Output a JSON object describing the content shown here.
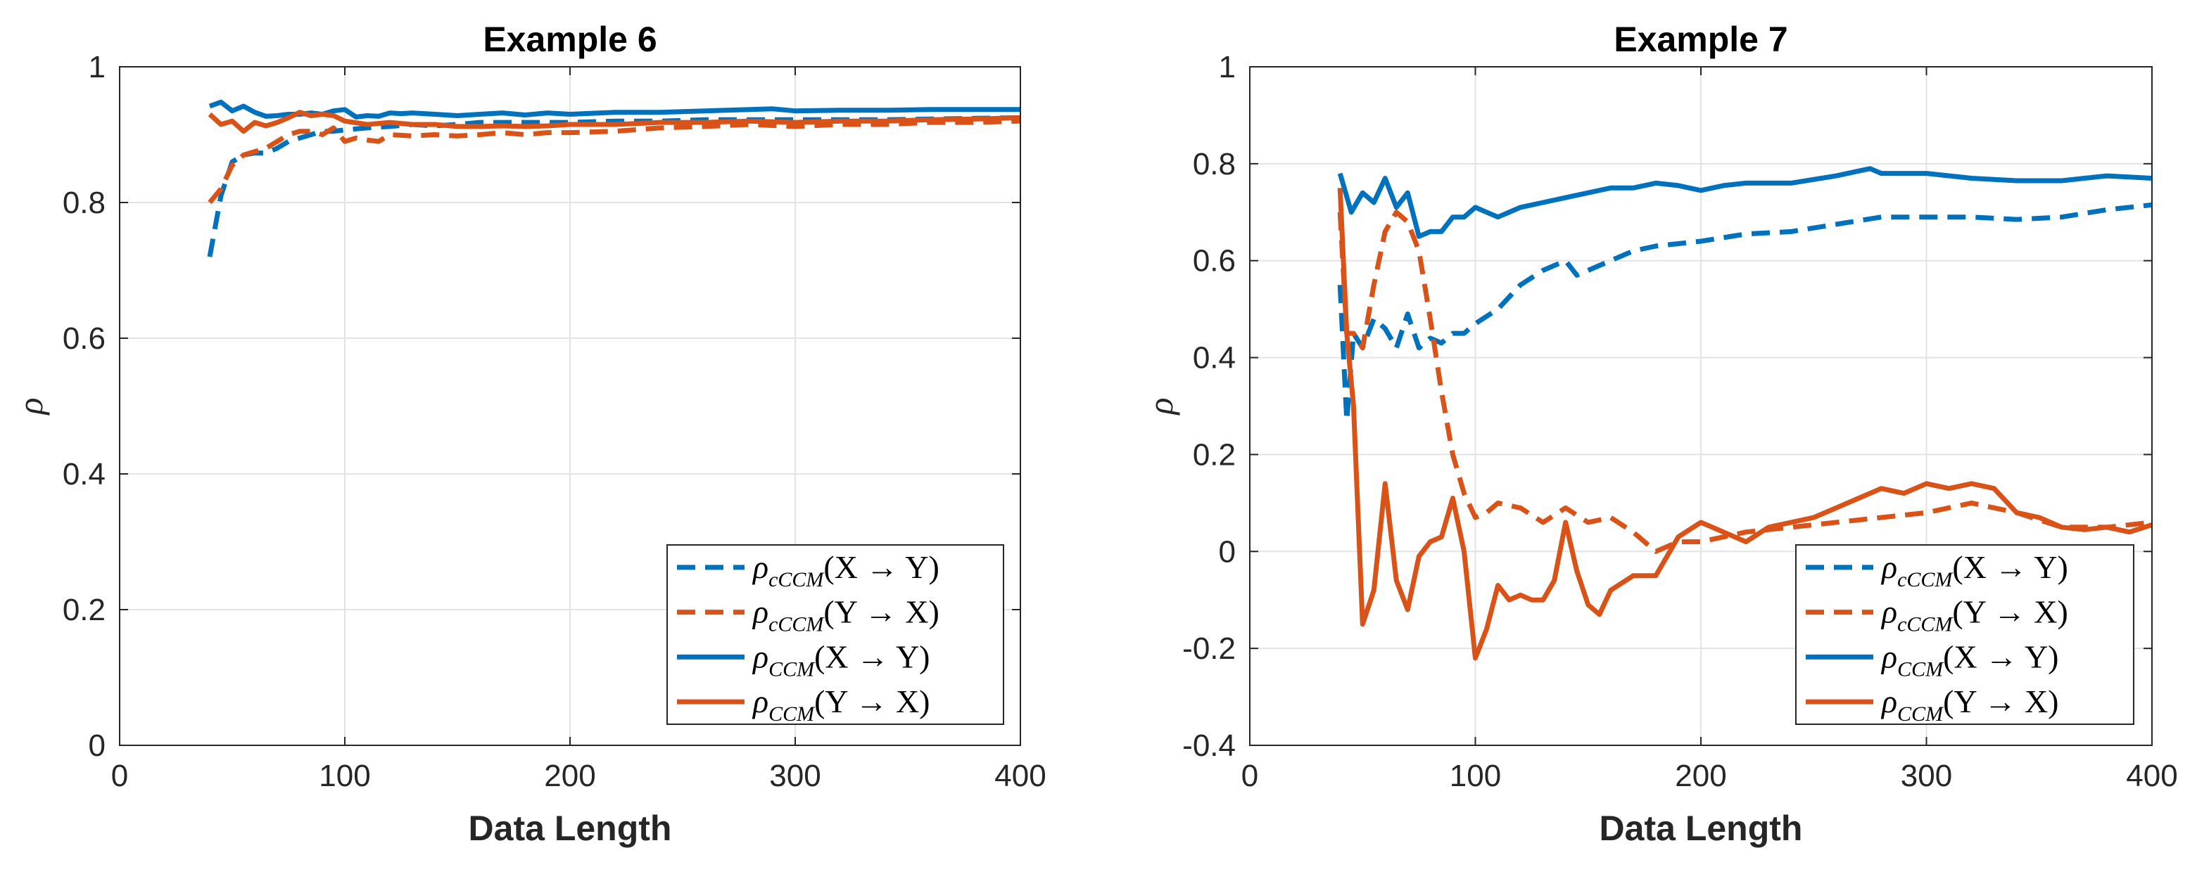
{
  "chart_data": [
    {
      "type": "line",
      "title": "Example 6",
      "xlabel": "Data Length",
      "ylabel": "ρ",
      "xlim": [
        0,
        400
      ],
      "ylim": [
        0,
        1
      ],
      "xticks": [
        0,
        100,
        200,
        300,
        400
      ],
      "xtick_labels": [
        "0",
        "100",
        "200",
        "300",
        "400"
      ],
      "yticks": [
        0,
        0.2,
        0.4,
        0.6,
        0.8,
        1
      ],
      "ytick_labels": [
        "0",
        "0.2",
        "0.4",
        "0.6",
        "0.8",
        "1"
      ],
      "grid": true,
      "legend_position": "bottom-right",
      "series": [
        {
          "name": "ρcCCM(X → Y)",
          "legend_rho": "ρ",
          "legend_sub": "cCCM",
          "legend_expr": "(X → Y)",
          "color": "#0072BD",
          "style": "dashed",
          "x": [
            40,
            45,
            50,
            55,
            60,
            65,
            70,
            75,
            80,
            85,
            90,
            95,
            100,
            110,
            120,
            130,
            140,
            150,
            160,
            170,
            180,
            190,
            200,
            220,
            240,
            260,
            280,
            300,
            320,
            340,
            360,
            380,
            400
          ],
          "y": [
            0.72,
            0.81,
            0.86,
            0.87,
            0.873,
            0.873,
            0.88,
            0.89,
            0.895,
            0.9,
            0.905,
            0.905,
            0.907,
            0.91,
            0.912,
            0.915,
            0.913,
            0.915,
            0.918,
            0.918,
            0.918,
            0.918,
            0.918,
            0.92,
            0.92,
            0.922,
            0.922,
            0.922,
            0.922,
            0.922,
            0.923,
            0.924,
            0.925
          ]
        },
        {
          "name": "ρcCCM(Y → X)",
          "legend_rho": "ρ",
          "legend_sub": "cCCM",
          "legend_expr": "(Y → X)",
          "color": "#D95319",
          "style": "dashed",
          "x": [
            40,
            45,
            50,
            55,
            60,
            65,
            70,
            75,
            80,
            85,
            90,
            95,
            100,
            105,
            110,
            115,
            120,
            130,
            140,
            150,
            160,
            170,
            180,
            190,
            200,
            220,
            240,
            260,
            280,
            300,
            320,
            340,
            360,
            380,
            400
          ],
          "y": [
            0.8,
            0.82,
            0.855,
            0.87,
            0.875,
            0.88,
            0.89,
            0.9,
            0.905,
            0.905,
            0.9,
            0.91,
            0.89,
            0.895,
            0.892,
            0.89,
            0.9,
            0.898,
            0.9,
            0.898,
            0.9,
            0.903,
            0.9,
            0.903,
            0.903,
            0.905,
            0.91,
            0.912,
            0.915,
            0.912,
            0.915,
            0.915,
            0.918,
            0.918,
            0.92
          ]
        },
        {
          "name": "ρCCM(X → Y)",
          "legend_rho": "ρ",
          "legend_sub": "CCM",
          "legend_expr": "(X → Y)",
          "color": "#0072BD",
          "style": "solid",
          "x": [
            40,
            45,
            50,
            55,
            60,
            65,
            70,
            75,
            80,
            85,
            90,
            95,
            100,
            105,
            110,
            115,
            120,
            125,
            130,
            140,
            150,
            160,
            170,
            180,
            190,
            200,
            220,
            240,
            260,
            280,
            290,
            300,
            320,
            340,
            360,
            380,
            400
          ],
          "y": [
            0.942,
            0.948,
            0.935,
            0.942,
            0.933,
            0.927,
            0.928,
            0.93,
            0.93,
            0.932,
            0.93,
            0.935,
            0.937,
            0.926,
            0.928,
            0.927,
            0.932,
            0.931,
            0.932,
            0.93,
            0.928,
            0.93,
            0.932,
            0.929,
            0.932,
            0.93,
            0.933,
            0.933,
            0.935,
            0.937,
            0.938,
            0.935,
            0.936,
            0.936,
            0.937,
            0.937,
            0.937
          ]
        },
        {
          "name": "ρCCM(Y → X)",
          "legend_rho": "ρ",
          "legend_sub": "CCM",
          "legend_expr": "(Y → X)",
          "color": "#D95319",
          "style": "solid",
          "x": [
            40,
            45,
            50,
            55,
            60,
            65,
            70,
            75,
            80,
            85,
            90,
            95,
            100,
            110,
            120,
            130,
            140,
            150,
            160,
            170,
            180,
            190,
            200,
            220,
            240,
            260,
            280,
            300,
            320,
            340,
            360,
            380,
            400
          ],
          "y": [
            0.93,
            0.915,
            0.92,
            0.905,
            0.918,
            0.913,
            0.918,
            0.925,
            0.933,
            0.928,
            0.93,
            0.928,
            0.92,
            0.915,
            0.918,
            0.915,
            0.915,
            0.912,
            0.912,
            0.913,
            0.912,
            0.913,
            0.915,
            0.915,
            0.918,
            0.918,
            0.92,
            0.918,
            0.92,
            0.92,
            0.922,
            0.923,
            0.925
          ]
        }
      ]
    },
    {
      "type": "line",
      "title": "Example 7",
      "xlabel": "Data Length",
      "ylabel": "ρ",
      "xlim": [
        0,
        400
      ],
      "ylim": [
        -0.4,
        1
      ],
      "xticks": [
        0,
        100,
        200,
        300,
        400
      ],
      "xtick_labels": [
        "0",
        "100",
        "200",
        "300",
        "400"
      ],
      "yticks": [
        -0.4,
        -0.2,
        0,
        0.2,
        0.4,
        0.6,
        0.8,
        1
      ],
      "ytick_labels": [
        "-0.4",
        "-0.2",
        "0",
        "0.2",
        "0.4",
        "0.6",
        "0.8",
        "1"
      ],
      "grid": true,
      "legend_position": "bottom-right",
      "series": [
        {
          "name": "ρcCCM(X → Y)",
          "legend_rho": "ρ",
          "legend_sub": "cCCM",
          "legend_expr": "(X → Y)",
          "color": "#0072BD",
          "style": "dashed",
          "x": [
            40,
            43,
            46,
            50,
            55,
            60,
            65,
            70,
            75,
            80,
            85,
            90,
            95,
            100,
            110,
            120,
            130,
            140,
            145,
            150,
            160,
            170,
            180,
            200,
            220,
            240,
            260,
            280,
            300,
            320,
            340,
            360,
            380,
            400
          ],
          "y": [
            0.55,
            0.27,
            0.45,
            0.42,
            0.48,
            0.46,
            0.42,
            0.49,
            0.42,
            0.44,
            0.43,
            0.45,
            0.45,
            0.47,
            0.5,
            0.55,
            0.58,
            0.6,
            0.57,
            0.58,
            0.6,
            0.62,
            0.63,
            0.64,
            0.655,
            0.66,
            0.675,
            0.69,
            0.69,
            0.69,
            0.685,
            0.69,
            0.705,
            0.715
          ]
        },
        {
          "name": "ρcCCM(Y → X)",
          "legend_rho": "ρ",
          "legend_sub": "cCCM",
          "legend_expr": "(Y → X)",
          "color": "#D95319",
          "style": "dashed",
          "x": [
            40,
            43,
            46,
            50,
            55,
            60,
            65,
            70,
            75,
            80,
            85,
            90,
            95,
            100,
            105,
            110,
            120,
            130,
            140,
            150,
            160,
            170,
            180,
            190,
            200,
            220,
            240,
            260,
            280,
            300,
            320,
            340,
            360,
            380,
            400
          ],
          "y": [
            0.7,
            0.45,
            0.45,
            0.42,
            0.55,
            0.66,
            0.7,
            0.68,
            0.62,
            0.48,
            0.33,
            0.2,
            0.12,
            0.07,
            0.08,
            0.1,
            0.09,
            0.06,
            0.09,
            0.06,
            0.07,
            0.04,
            0.0,
            0.02,
            0.02,
            0.04,
            0.05,
            0.06,
            0.07,
            0.08,
            0.1,
            0.08,
            0.05,
            0.05,
            0.06
          ]
        },
        {
          "name": "ρCCM(X → Y)",
          "legend_rho": "ρ",
          "legend_sub": "CCM",
          "legend_expr": "(X → Y)",
          "color": "#0072BD",
          "style": "solid",
          "x": [
            40,
            45,
            50,
            55,
            60,
            65,
            70,
            75,
            80,
            85,
            90,
            95,
            100,
            105,
            110,
            120,
            130,
            140,
            150,
            160,
            170,
            180,
            190,
            200,
            210,
            220,
            240,
            260,
            270,
            275,
            280,
            300,
            320,
            340,
            360,
            380,
            400
          ],
          "y": [
            0.78,
            0.7,
            0.74,
            0.72,
            0.77,
            0.71,
            0.74,
            0.65,
            0.66,
            0.66,
            0.69,
            0.69,
            0.71,
            0.7,
            0.69,
            0.71,
            0.72,
            0.73,
            0.74,
            0.75,
            0.75,
            0.76,
            0.755,
            0.745,
            0.755,
            0.76,
            0.76,
            0.775,
            0.785,
            0.79,
            0.78,
            0.78,
            0.77,
            0.765,
            0.765,
            0.775,
            0.77
          ]
        },
        {
          "name": "ρCCM(Y → X)",
          "legend_rho": "ρ",
          "legend_sub": "CCM",
          "legend_expr": "(Y → X)",
          "color": "#D95319",
          "style": "solid",
          "x": [
            40,
            43,
            46,
            50,
            55,
            60,
            65,
            70,
            75,
            80,
            85,
            90,
            95,
            100,
            105,
            110,
            115,
            120,
            125,
            130,
            135,
            140,
            145,
            150,
            155,
            160,
            170,
            180,
            190,
            200,
            210,
            220,
            230,
            240,
            250,
            260,
            270,
            280,
            290,
            300,
            310,
            320,
            330,
            340,
            350,
            360,
            370,
            380,
            390,
            400
          ],
          "y": [
            0.75,
            0.45,
            0.3,
            -0.15,
            -0.08,
            0.14,
            -0.06,
            -0.12,
            -0.01,
            0.02,
            0.03,
            0.11,
            0.0,
            -0.22,
            -0.16,
            -0.07,
            -0.1,
            -0.09,
            -0.1,
            -0.1,
            -0.06,
            0.06,
            -0.04,
            -0.11,
            -0.13,
            -0.08,
            -0.05,
            -0.05,
            0.03,
            0.06,
            0.04,
            0.02,
            0.05,
            0.06,
            0.07,
            0.09,
            0.11,
            0.13,
            0.12,
            0.14,
            0.13,
            0.14,
            0.13,
            0.08,
            0.07,
            0.05,
            0.045,
            0.05,
            0.04,
            0.055
          ]
        }
      ]
    }
  ]
}
